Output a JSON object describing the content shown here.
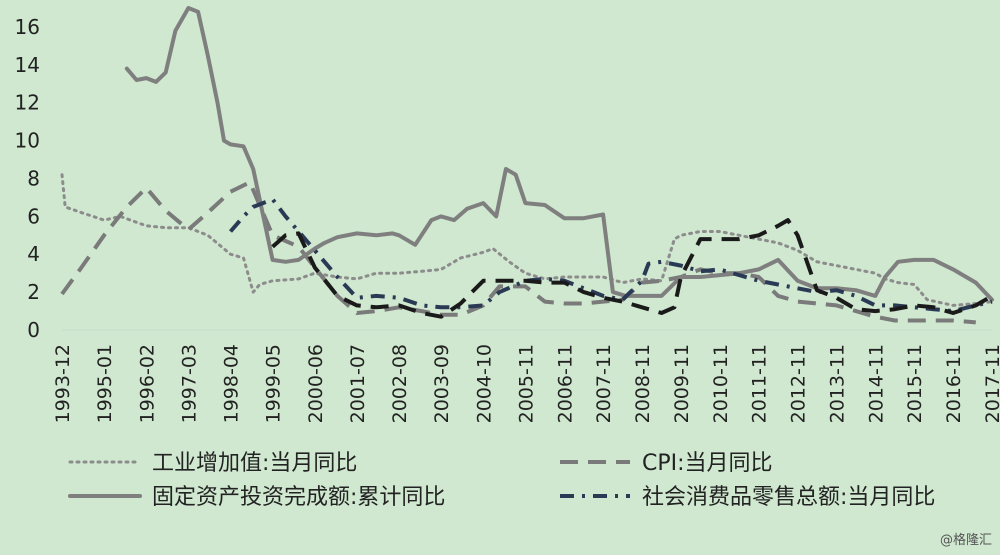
{
  "chart_data": {
    "type": "line",
    "ylim": [
      0,
      17
    ],
    "yticks": [
      0,
      2,
      4,
      6,
      8,
      10,
      12,
      14,
      16
    ],
    "xlim": [
      "1993-12",
      "2017-11"
    ],
    "xticks": [
      "1993-12",
      "1995-01",
      "1996-02",
      "1997-03",
      "1998-04",
      "1999-05",
      "2000-06",
      "2001-07",
      "2002-08",
      "2003-09",
      "2004-10",
      "2005-11",
      "2006-11",
      "2007-11",
      "2008-11",
      "2009-11",
      "2010-11",
      "2011-11",
      "2012-11",
      "2013-11",
      "2014-11",
      "2015-11",
      "2016-11",
      "2017-11"
    ],
    "legend_placement": "bottom",
    "series": [
      {
        "name": "工业增加值:当月同比",
        "style": "dotted",
        "color": "#8c8c8c",
        "points": [
          [
            "1993-12",
            8.2
          ],
          [
            "1994-01",
            6.5
          ],
          [
            "1994-06",
            6.2
          ],
          [
            "1995-01",
            5.8
          ],
          [
            "1995-06",
            6.0
          ],
          [
            "1996-02",
            5.5
          ],
          [
            "1996-08",
            5.4
          ],
          [
            "1997-03",
            5.4
          ],
          [
            "1997-09",
            5.0
          ],
          [
            "1998-04",
            4.0
          ],
          [
            "1998-08",
            3.8
          ],
          [
            "1998-11",
            2.0
          ],
          [
            "1999-01",
            2.4
          ],
          [
            "1999-05",
            2.6
          ],
          [
            "2000-01",
            2.7
          ],
          [
            "2000-06",
            3.0
          ],
          [
            "2001-01",
            2.8
          ],
          [
            "2001-07",
            2.7
          ],
          [
            "2002-01",
            3.0
          ],
          [
            "2002-08",
            3.0
          ],
          [
            "2003-03",
            3.1
          ],
          [
            "2003-09",
            3.2
          ],
          [
            "2004-03",
            3.8
          ],
          [
            "2004-10",
            4.1
          ],
          [
            "2005-01",
            4.3
          ],
          [
            "2005-06",
            3.6
          ],
          [
            "2005-11",
            3.0
          ],
          [
            "2006-05",
            2.7
          ],
          [
            "2006-11",
            2.8
          ],
          [
            "2007-05",
            2.8
          ],
          [
            "2007-11",
            2.8
          ],
          [
            "2008-05",
            2.5
          ],
          [
            "2008-11",
            2.7
          ],
          [
            "2009-05",
            2.6
          ],
          [
            "2009-09",
            4.8
          ],
          [
            "2009-11",
            5.0
          ],
          [
            "2010-05",
            5.2
          ],
          [
            "2010-11",
            5.2
          ],
          [
            "2011-05",
            5.0
          ],
          [
            "2011-11",
            4.8
          ],
          [
            "2012-05",
            4.6
          ],
          [
            "2012-11",
            4.2
          ],
          [
            "2013-05",
            3.6
          ],
          [
            "2013-11",
            3.4
          ],
          [
            "2014-05",
            3.2
          ],
          [
            "2014-11",
            3.0
          ],
          [
            "2015-02",
            2.7
          ],
          [
            "2015-06",
            2.5
          ],
          [
            "2015-11",
            2.4
          ],
          [
            "2016-03",
            1.6
          ],
          [
            "2016-11",
            1.3
          ],
          [
            "2017-06",
            1.4
          ],
          [
            "2017-11",
            1.5
          ]
        ]
      },
      {
        "name": "CPI:当月同比",
        "style": "dashed",
        "color": "#7a7a7a",
        "points": [
          [
            "1993-12",
            1.9
          ],
          [
            "1994-06",
            3.3
          ],
          [
            "1995-01",
            5.0
          ],
          [
            "1995-08",
            6.5
          ],
          [
            "1996-02",
            7.5
          ],
          [
            "1996-08",
            6.3
          ],
          [
            "1997-03",
            5.3
          ],
          [
            "1997-09",
            6.2
          ],
          [
            "1998-04",
            7.3
          ],
          [
            "1998-10",
            7.8
          ],
          [
            "1999-05",
            5.0
          ],
          [
            "2000-01",
            4.4
          ],
          [
            "2000-06",
            3.3
          ],
          [
            "2001-01",
            1.8
          ],
          [
            "2001-07",
            0.9
          ],
          [
            "2002-01",
            1.0
          ],
          [
            "2002-08",
            1.2
          ],
          [
            "2003-03",
            1.0
          ],
          [
            "2003-09",
            0.8
          ],
          [
            "2004-03",
            0.8
          ],
          [
            "2004-10",
            1.3
          ],
          [
            "2005-03",
            2.3
          ],
          [
            "2005-11",
            2.3
          ],
          [
            "2006-05",
            1.5
          ],
          [
            "2006-11",
            1.4
          ],
          [
            "2007-05",
            1.4
          ],
          [
            "2007-11",
            1.5
          ],
          [
            "2008-05",
            1.6
          ],
          [
            "2008-11",
            2.5
          ],
          [
            "2009-05",
            2.6
          ],
          [
            "2009-11",
            2.8
          ],
          [
            "2010-05",
            3.2
          ],
          [
            "2010-11",
            3.0
          ],
          [
            "2011-05",
            3.0
          ],
          [
            "2011-11",
            2.8
          ],
          [
            "2012-05",
            1.8
          ],
          [
            "2012-11",
            1.5
          ],
          [
            "2013-05",
            1.4
          ],
          [
            "2013-11",
            1.3
          ],
          [
            "2014-05",
            1.0
          ],
          [
            "2014-11",
            0.7
          ],
          [
            "2015-05",
            0.5
          ],
          [
            "2015-11",
            0.5
          ],
          [
            "2016-05",
            0.5
          ],
          [
            "2016-11",
            0.5
          ],
          [
            "2017-06",
            0.4
          ]
        ]
      },
      {
        "name": "固定资产投资完成额:累计同比",
        "style": "solid",
        "color": "#7f7f7f",
        "points": [
          [
            "1995-08",
            13.8
          ],
          [
            "1995-11",
            13.2
          ],
          [
            "1996-02",
            13.3
          ],
          [
            "1996-05",
            13.1
          ],
          [
            "1996-08",
            13.6
          ],
          [
            "1996-11",
            15.8
          ],
          [
            "1997-03",
            17.0
          ],
          [
            "1997-06",
            16.8
          ],
          [
            "1997-09",
            14.5
          ],
          [
            "1997-12",
            12.0
          ],
          [
            "1998-02",
            10.0
          ],
          [
            "1998-04",
            9.8
          ],
          [
            "1998-08",
            9.7
          ],
          [
            "1998-11",
            8.5
          ],
          [
            "1999-05",
            3.7
          ],
          [
            "1999-09",
            3.6
          ],
          [
            "2000-01",
            3.7
          ],
          [
            "2000-06",
            4.3
          ],
          [
            "2000-09",
            4.6
          ],
          [
            "2001-01",
            4.9
          ],
          [
            "2001-07",
            5.1
          ],
          [
            "2002-01",
            5.0
          ],
          [
            "2002-06",
            5.1
          ],
          [
            "2002-08",
            5.0
          ],
          [
            "2003-01",
            4.5
          ],
          [
            "2003-06",
            5.8
          ],
          [
            "2003-09",
            6.0
          ],
          [
            "2004-01",
            5.8
          ],
          [
            "2004-05",
            6.4
          ],
          [
            "2004-10",
            6.7
          ],
          [
            "2005-02",
            6.0
          ],
          [
            "2005-05",
            8.5
          ],
          [
            "2005-08",
            8.2
          ],
          [
            "2005-11",
            6.7
          ],
          [
            "2006-05",
            6.6
          ],
          [
            "2006-11",
            5.9
          ],
          [
            "2007-05",
            5.9
          ],
          [
            "2007-11",
            6.1
          ],
          [
            "2008-02",
            2.0
          ],
          [
            "2008-06",
            1.8
          ],
          [
            "2008-11",
            1.8
          ],
          [
            "2009-05",
            1.8
          ],
          [
            "2009-11",
            2.8
          ],
          [
            "2010-05",
            2.8
          ],
          [
            "2010-11",
            2.9
          ],
          [
            "2011-05",
            3.0
          ],
          [
            "2011-11",
            3.2
          ],
          [
            "2012-05",
            3.7
          ],
          [
            "2012-11",
            2.6
          ],
          [
            "2013-05",
            2.2
          ],
          [
            "2013-11",
            2.2
          ],
          [
            "2014-05",
            2.1
          ],
          [
            "2014-11",
            1.8
          ],
          [
            "2015-02",
            2.8
          ],
          [
            "2015-06",
            3.6
          ],
          [
            "2015-11",
            3.7
          ],
          [
            "2016-05",
            3.7
          ],
          [
            "2016-11",
            3.2
          ],
          [
            "2017-06",
            2.5
          ],
          [
            "2017-11",
            1.6
          ]
        ]
      },
      {
        "name": "社会消费品零售总额:当月同比",
        "style": "dash-dot",
        "color": "#2a3a55",
        "points": [
          [
            "1998-04",
            5.2
          ],
          [
            "1998-08",
            6.0
          ],
          [
            "1998-11",
            6.5
          ],
          [
            "1999-05",
            6.9
          ],
          [
            "1999-09",
            6.0
          ],
          [
            "2000-01",
            5.2
          ],
          [
            "2000-06",
            4.2
          ],
          [
            "2001-01",
            2.8
          ],
          [
            "2001-07",
            1.7
          ],
          [
            "2002-01",
            1.8
          ],
          [
            "2002-08",
            1.7
          ],
          [
            "2003-03",
            1.3
          ],
          [
            "2003-09",
            1.2
          ],
          [
            "2004-03",
            1.2
          ],
          [
            "2004-10",
            1.3
          ],
          [
            "2005-03",
            2.0
          ],
          [
            "2005-11",
            2.6
          ],
          [
            "2006-05",
            2.7
          ],
          [
            "2006-11",
            2.6
          ],
          [
            "2007-05",
            2.2
          ],
          [
            "2007-11",
            1.8
          ],
          [
            "2008-05",
            1.6
          ],
          [
            "2008-11",
            2.6
          ],
          [
            "2009-01",
            3.5
          ],
          [
            "2009-05",
            3.6
          ],
          [
            "2009-11",
            3.4
          ],
          [
            "2010-05",
            3.1
          ],
          [
            "2010-11",
            3.2
          ],
          [
            "2011-05",
            2.9
          ],
          [
            "2011-11",
            2.6
          ],
          [
            "2012-05",
            2.4
          ],
          [
            "2012-11",
            2.2
          ],
          [
            "2013-05",
            2.0
          ],
          [
            "2013-11",
            2.1
          ],
          [
            "2014-05",
            1.8
          ],
          [
            "2014-11",
            1.3
          ],
          [
            "2015-05",
            1.3
          ],
          [
            "2015-11",
            1.2
          ],
          [
            "2016-05",
            1.1
          ],
          [
            "2016-11",
            1.0
          ],
          [
            "2017-06",
            1.3
          ],
          [
            "2017-11",
            1.5
          ]
        ]
      },
      {
        "name": "",
        "style": "dashed",
        "color": "#1a1a1a",
        "points": [
          [
            "1999-05",
            4.4
          ],
          [
            "1999-09",
            5.0
          ],
          [
            "2000-01",
            5.1
          ],
          [
            "2000-06",
            3.3
          ],
          [
            "2001-01",
            1.8
          ],
          [
            "2001-07",
            1.3
          ],
          [
            "2002-01",
            1.2
          ],
          [
            "2002-08",
            1.3
          ],
          [
            "2003-03",
            0.9
          ],
          [
            "2003-09",
            0.7
          ],
          [
            "2004-03",
            1.4
          ],
          [
            "2004-10",
            2.6
          ],
          [
            "2005-03",
            2.6
          ],
          [
            "2005-11",
            2.6
          ],
          [
            "2006-05",
            2.5
          ],
          [
            "2006-11",
            2.5
          ],
          [
            "2007-05",
            2.0
          ],
          [
            "2007-11",
            1.7
          ],
          [
            "2008-05",
            1.5
          ],
          [
            "2008-11",
            1.2
          ],
          [
            "2009-05",
            0.9
          ],
          [
            "2009-09",
            1.2
          ],
          [
            "2009-11",
            2.8
          ],
          [
            "2010-05",
            4.8
          ],
          [
            "2010-11",
            4.8
          ],
          [
            "2011-05",
            4.8
          ],
          [
            "2011-11",
            5.0
          ],
          [
            "2012-05",
            5.5
          ],
          [
            "2012-08",
            5.8
          ],
          [
            "2012-11",
            5.0
          ],
          [
            "2013-05",
            2.1
          ],
          [
            "2013-11",
            1.7
          ],
          [
            "2014-05",
            1.1
          ],
          [
            "2014-11",
            1.0
          ],
          [
            "2015-05",
            1.1
          ],
          [
            "2015-11",
            1.3
          ],
          [
            "2016-05",
            1.2
          ],
          [
            "2016-11",
            0.9
          ],
          [
            "2017-06",
            1.3
          ],
          [
            "2017-11",
            1.8
          ]
        ]
      }
    ]
  },
  "watermark": "@格隆汇"
}
